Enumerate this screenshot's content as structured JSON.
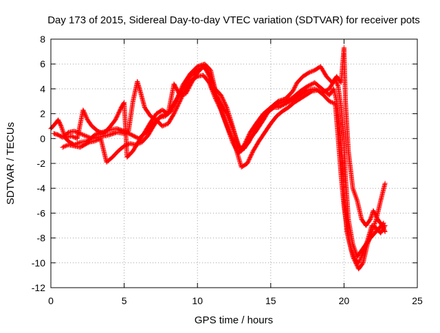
{
  "chart_data": {
    "type": "scatter",
    "title": "Day 173 of 2015, Sidereal Day-to-day VTEC variation (SDTVAR) for receiver pots",
    "xlabel": "GPS time / hours",
    "ylabel": "SDTVAR / TECUs",
    "xlim": [
      0,
      25
    ],
    "ylim": [
      -12,
      8
    ],
    "x_ticks": [
      0,
      5,
      10,
      15,
      20,
      25
    ],
    "y_ticks": [
      -12,
      -10,
      -8,
      -6,
      -4,
      -2,
      0,
      2,
      4,
      6,
      8
    ],
    "grid": true,
    "marker": "+",
    "series_color": "#ff0000",
    "series": [
      {
        "points": [
          [
            0.0,
            0.8
          ],
          [
            0.3,
            1.2
          ],
          [
            0.5,
            1.5
          ],
          [
            0.7,
            1.0
          ],
          [
            1.0,
            0.0
          ],
          [
            1.3,
            -0.3
          ],
          [
            1.6,
            -0.5
          ],
          [
            2.0,
            -0.3
          ],
          [
            2.5,
            -0.2
          ],
          [
            3.0,
            0.3
          ],
          [
            3.5,
            0.5
          ],
          [
            4.0,
            0.7
          ],
          [
            4.5,
            0.8
          ],
          [
            5.0,
            0.6
          ],
          [
            5.5,
            0.3
          ],
          [
            6.0,
            0.0
          ],
          [
            6.5,
            0.5
          ],
          [
            7.0,
            1.2
          ],
          [
            7.5,
            1.8
          ],
          [
            8.0,
            2.0
          ],
          [
            8.5,
            3.0
          ],
          [
            9.0,
            4.0
          ],
          [
            9.5,
            5.0
          ],
          [
            10.0,
            5.5
          ],
          [
            10.5,
            5.8
          ],
          [
            10.8,
            5.0
          ],
          [
            11.0,
            4.0
          ],
          [
            11.5,
            3.0
          ],
          [
            12.0,
            2.0
          ],
          [
            12.5,
            0.5
          ],
          [
            12.8,
            -0.5
          ],
          [
            13.0,
            -1.0
          ],
          [
            13.5,
            -0.3
          ],
          [
            14.0,
            0.8
          ],
          [
            14.5,
            1.8
          ],
          [
            15.0,
            2.3
          ],
          [
            15.5,
            2.8
          ],
          [
            16.0,
            3.0
          ],
          [
            16.5,
            3.3
          ],
          [
            17.0,
            3.8
          ],
          [
            17.5,
            4.2
          ],
          [
            18.0,
            4.5
          ],
          [
            18.5,
            4.0
          ],
          [
            19.0,
            3.5
          ],
          [
            19.3,
            4.0
          ],
          [
            19.5,
            3.0
          ],
          [
            19.7,
            1.0
          ],
          [
            19.9,
            -2.0
          ],
          [
            20.0,
            -5.0
          ],
          [
            20.2,
            -7.5
          ],
          [
            20.5,
            -9.0
          ],
          [
            20.8,
            -9.8
          ],
          [
            21.0,
            -10.0
          ],
          [
            21.3,
            -9.2
          ],
          [
            21.6,
            -8.2
          ],
          [
            21.9,
            -7.0
          ],
          [
            22.2,
            -7.2
          ],
          [
            22.5,
            -7.6
          ],
          [
            22.8,
            -7.0
          ]
        ]
      },
      {
        "points": [
          [
            0.2,
            0.4
          ],
          [
            0.5,
            0.3
          ],
          [
            0.8,
            0.1
          ],
          [
            1.2,
            0.5
          ],
          [
            1.6,
            0.6
          ],
          [
            2.0,
            0.4
          ],
          [
            2.4,
            0.2
          ],
          [
            2.8,
            0.0
          ],
          [
            3.2,
            0.1
          ],
          [
            3.6,
            0.2
          ],
          [
            4.0,
            0.3
          ],
          [
            4.5,
            0.5
          ],
          [
            5.0,
            0.4
          ],
          [
            5.3,
            0.6
          ],
          [
            5.6,
            3.0
          ],
          [
            5.9,
            4.6
          ],
          [
            6.1,
            3.8
          ],
          [
            6.4,
            2.5
          ],
          [
            6.8,
            1.8
          ],
          [
            7.2,
            1.5
          ],
          [
            7.6,
            1.0
          ],
          [
            8.0,
            1.2
          ],
          [
            8.4,
            2.0
          ],
          [
            8.8,
            3.0
          ],
          [
            9.2,
            4.0
          ],
          [
            9.6,
            4.7
          ],
          [
            10.0,
            5.0
          ],
          [
            10.4,
            5.1
          ],
          [
            10.8,
            4.5
          ],
          [
            11.2,
            3.3
          ],
          [
            11.6,
            2.3
          ],
          [
            12.0,
            1.0
          ],
          [
            12.4,
            -0.3
          ],
          [
            12.8,
            -1.2
          ],
          [
            13.2,
            -0.5
          ],
          [
            13.6,
            0.5
          ],
          [
            14.0,
            1.2
          ],
          [
            14.5,
            2.0
          ],
          [
            15.0,
            2.5
          ],
          [
            15.5,
            2.5
          ],
          [
            16.0,
            2.8
          ],
          [
            16.5,
            3.1
          ],
          [
            17.0,
            3.5
          ],
          [
            17.5,
            3.9
          ],
          [
            18.0,
            4.0
          ],
          [
            18.5,
            3.7
          ],
          [
            19.0,
            4.0
          ],
          [
            19.4,
            4.8
          ],
          [
            19.6,
            4.2
          ],
          [
            19.8,
            2.5
          ],
          [
            20.0,
            0.0
          ],
          [
            20.1,
            -3.0
          ],
          [
            20.3,
            -6.5
          ],
          [
            20.6,
            -8.5
          ],
          [
            20.9,
            -9.5
          ],
          [
            21.2,
            -9.0
          ],
          [
            21.5,
            -8.5
          ],
          [
            21.8,
            -8.0
          ],
          [
            22.1,
            -7.6
          ],
          [
            22.4,
            -7.2
          ],
          [
            22.7,
            -6.8
          ]
        ]
      },
      {
        "points": [
          [
            0.8,
            -0.7
          ],
          [
            1.2,
            -0.5
          ],
          [
            1.6,
            -0.6
          ],
          [
            2.0,
            -0.7
          ],
          [
            2.3,
            -0.5
          ],
          [
            2.6,
            -0.3
          ],
          [
            3.0,
            -0.2
          ],
          [
            3.4,
            0.0
          ],
          [
            3.8,
            -1.9
          ],
          [
            4.2,
            -1.5
          ],
          [
            4.6,
            -1.0
          ],
          [
            5.0,
            -0.6
          ],
          [
            5.4,
            -0.4
          ],
          [
            5.8,
            -0.5
          ],
          [
            6.2,
            -0.3
          ],
          [
            6.6,
            0.2
          ],
          [
            7.0,
            1.0
          ],
          [
            7.4,
            1.7
          ],
          [
            7.8,
            1.8
          ],
          [
            8.2,
            2.2
          ],
          [
            8.6,
            3.2
          ],
          [
            9.0,
            4.3
          ],
          [
            9.5,
            5.2
          ],
          [
            10.0,
            5.8
          ],
          [
            10.5,
            6.0
          ],
          [
            10.9,
            5.5
          ],
          [
            11.3,
            3.5
          ],
          [
            11.7,
            2.0
          ],
          [
            12.1,
            0.8
          ],
          [
            12.5,
            -0.3
          ],
          [
            13.0,
            -2.3
          ],
          [
            13.4,
            -2.0
          ],
          [
            13.8,
            -1.0
          ],
          [
            14.2,
            -0.2
          ],
          [
            14.6,
            0.5
          ],
          [
            15.0,
            1.2
          ],
          [
            15.4,
            1.8
          ],
          [
            15.8,
            2.2
          ],
          [
            16.2,
            2.5
          ],
          [
            16.6,
            2.9
          ],
          [
            17.0,
            3.2
          ],
          [
            17.4,
            3.5
          ],
          [
            17.8,
            3.8
          ],
          [
            18.2,
            3.9
          ],
          [
            18.6,
            3.5
          ],
          [
            19.0,
            3.0
          ],
          [
            19.4,
            2.8
          ],
          [
            19.6,
            0.0
          ],
          [
            19.8,
            -3.0
          ],
          [
            20.0,
            -5.5
          ],
          [
            20.3,
            -8.0
          ],
          [
            20.6,
            -9.5
          ],
          [
            21.0,
            -10.5
          ],
          [
            21.3,
            -10.0
          ],
          [
            21.6,
            -8.5
          ],
          [
            21.9,
            -7.5
          ],
          [
            22.2,
            -6.5
          ],
          [
            22.5,
            -5.0
          ],
          [
            22.8,
            -3.6
          ]
        ]
      },
      {
        "points": [
          [
            1.0,
            0.1
          ],
          [
            1.4,
            0.2
          ],
          [
            1.8,
            0.0
          ],
          [
            2.2,
            2.3
          ],
          [
            2.5,
            1.5
          ],
          [
            2.8,
            1.0
          ],
          [
            3.2,
            0.6
          ],
          [
            3.6,
            0.4
          ],
          [
            4.0,
            0.9
          ],
          [
            4.4,
            1.5
          ],
          [
            4.8,
            2.5
          ],
          [
            5.0,
            2.9
          ],
          [
            5.2,
            -1.5
          ],
          [
            5.6,
            -1.0
          ],
          [
            6.0,
            -0.2
          ],
          [
            6.4,
            0.5
          ],
          [
            6.8,
            1.3
          ],
          [
            7.2,
            2.0
          ],
          [
            7.6,
            2.3
          ],
          [
            8.0,
            2.0
          ],
          [
            8.4,
            4.4
          ],
          [
            8.8,
            3.5
          ],
          [
            9.2,
            3.6
          ],
          [
            9.6,
            4.5
          ],
          [
            10.0,
            5.3
          ],
          [
            10.4,
            5.8
          ],
          [
            10.8,
            5.2
          ],
          [
            11.2,
            4.0
          ],
          [
            11.6,
            3.5
          ],
          [
            12.0,
            2.5
          ],
          [
            12.4,
            1.0
          ],
          [
            12.8,
            -0.7
          ],
          [
            13.2,
            -0.8
          ],
          [
            13.6,
            0.0
          ],
          [
            14.0,
            0.6
          ],
          [
            14.5,
            1.5
          ],
          [
            15.0,
            2.5
          ],
          [
            15.5,
            3.0
          ],
          [
            16.0,
            3.2
          ],
          [
            16.5,
            3.8
          ],
          [
            16.8,
            4.5
          ],
          [
            17.2,
            5.0
          ],
          [
            17.6,
            5.3
          ],
          [
            18.0,
            5.5
          ],
          [
            18.4,
            5.8
          ],
          [
            18.8,
            5.0
          ],
          [
            19.2,
            4.5
          ],
          [
            19.5,
            5.0
          ],
          [
            19.8,
            4.5
          ],
          [
            20.0,
            7.3
          ],
          [
            20.1,
            3.0
          ],
          [
            20.3,
            -1.0
          ],
          [
            20.6,
            -4.0
          ],
          [
            20.9,
            -5.0
          ],
          [
            21.2,
            -6.5
          ],
          [
            21.5,
            -7.0
          ],
          [
            21.8,
            -6.5
          ],
          [
            22.0,
            -5.8
          ],
          [
            22.3,
            -6.5
          ],
          [
            22.6,
            -7.0
          ],
          [
            22.8,
            -7.5
          ]
        ]
      }
    ]
  }
}
